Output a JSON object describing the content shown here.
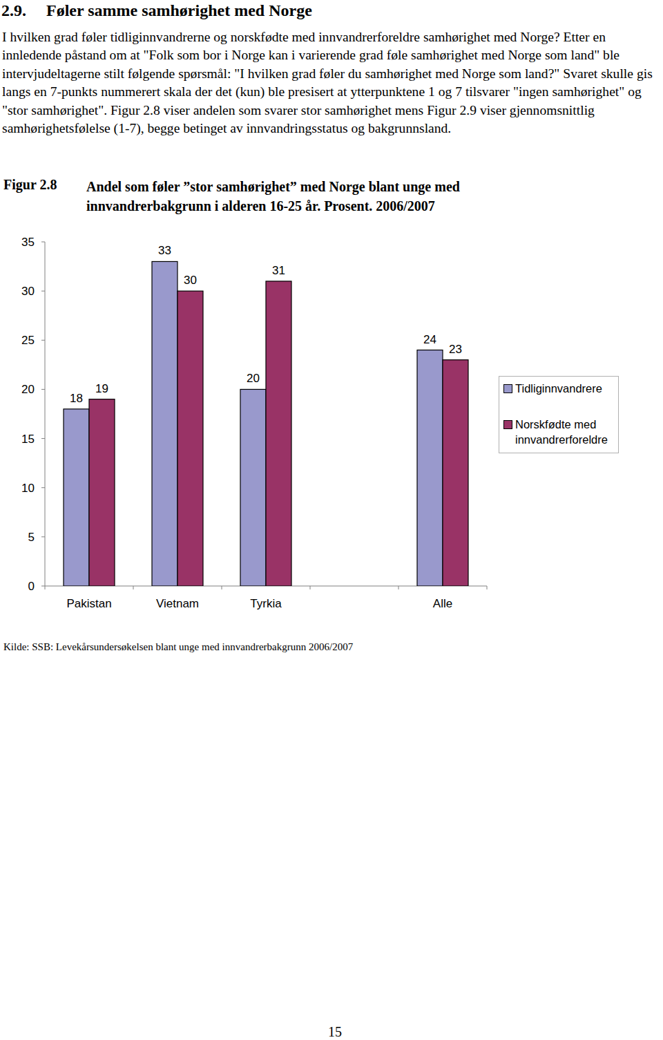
{
  "heading": {
    "number": "2.9.",
    "text": "Føler samme samhørighet med Norge"
  },
  "paragraph": "I hvilken grad føler tidliginnvandrerne og norskfødte med innvandrerforeldre samhørighet med Norge? Etter en innledende påstand om at \"Folk som bor i Norge kan i varierende grad føle samhørighet med Norge som land\" ble intervjudeltagerne stilt følgende spørsmål: \"I hvilken grad føler du samhørighet med Norge som land?\" Svaret skulle gis langs en 7-punkts nummerert skala der det (kun) ble presisert at ytterpunktene 1 og 7 tilsvarer \"ingen samhørighet\" og \"stor samhørighet\". Figur 2.8 viser andelen som svarer stor samhørighet mens Figur 2.9 viser gjennomsnittlig samhørighetsfølelse (1-7), begge betinget av innvandringsstatus og bakgrunnsland.",
  "figure_label": "Figur 2.8",
  "chart_data": {
    "type": "bar",
    "title": "Andel som føler ”stor samhørighet” med Norge blant unge med innvandrerbakgrunn i alderen 16-25 år. Prosent. 2006/2007",
    "categories": [
      "Pakistan",
      "Vietnam",
      "Tyrkia",
      null,
      "Alle"
    ],
    "series": [
      {
        "name": "Tidliginnvandrere",
        "color": "#9999cc",
        "values": [
          18,
          33,
          20,
          null,
          24
        ]
      },
      {
        "name": "Norskfødte med innvandrerforeldre",
        "color": "#993366",
        "values": [
          19,
          30,
          31,
          null,
          23
        ]
      }
    ],
    "ylim": [
      0,
      35
    ],
    "yticks": [
      0,
      5,
      10,
      15,
      20,
      25,
      30,
      35
    ],
    "grid": false,
    "legend": "right",
    "data_labels": true
  },
  "source": "Kilde: SSB: Levekårsundersøkelsen blant unge med innvandrerbakgrunn 2006/2007",
  "page_number": "15"
}
